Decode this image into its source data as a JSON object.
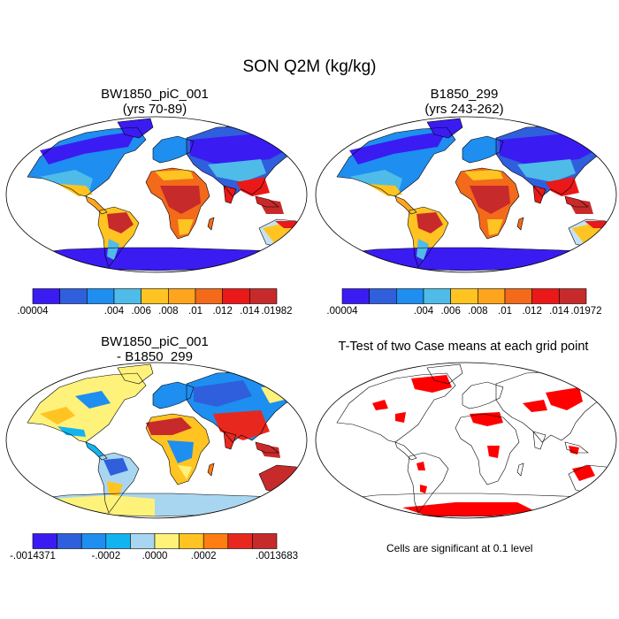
{
  "title": "SON Q2M (kg/kg)",
  "colors": {
    "diff_palette": [
      "#3a1cf2",
      "#2f5fdc",
      "#1e8ef0",
      "#12b4f0",
      "#a8d6f0",
      "#fff27a",
      "#ffc421",
      "#ff7d12",
      "#e8281e",
      "#c72a2a"
    ],
    "abs_palette": [
      "#3a1cf2",
      "#2f5fdc",
      "#1e8ef0",
      "#4fbbe8",
      "#c6e2f2",
      "#ffc421",
      "#ffa51d",
      "#f26a1a",
      "#ea1818",
      "#c72a2a"
    ],
    "significance": "#ff0000",
    "ocean": "#ffffff",
    "coast": "#000000"
  },
  "chart_data": [
    {
      "type": "heatmap",
      "name": "panel-1",
      "title_line1": "BW1850_piC_001",
      "title_line2": "(yrs 70-89)",
      "colorbar_labels": [
        ".00004",
        ".004",
        ".006",
        ".008",
        ".01",
        ".012",
        ".014",
        ".01982"
      ],
      "colorbar_boxes": 9,
      "palette": "abs"
    },
    {
      "type": "heatmap",
      "name": "panel-2",
      "title_line1": "B1850_299",
      "title_line2": "(yrs 243-262)",
      "colorbar_labels": [
        ".00004",
        ".004",
        ".006",
        ".008",
        ".01",
        ".012",
        ".014",
        ".01972"
      ],
      "colorbar_boxes": 9,
      "palette": "abs"
    },
    {
      "type": "heatmap",
      "name": "panel-3",
      "title_line1": "BW1850_piC_001",
      "title_line2": "- B1850_299",
      "colorbar_labels": [
        "-.0014371",
        "-.0002",
        ".0000",
        ".0002",
        ".0013683"
      ],
      "colorbar_boxes": 10,
      "palette": "diff"
    },
    {
      "type": "heatmap",
      "name": "panel-4",
      "title_line1": "T-Test of two Case means at each grid point",
      "note": "Cells are significant at 0.1 level",
      "palette": "significance"
    }
  ]
}
